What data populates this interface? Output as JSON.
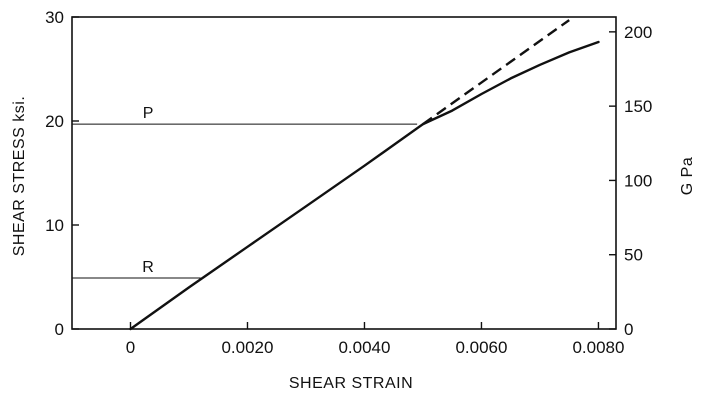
{
  "chart_data": {
    "type": "line",
    "xlabel": "SHEAR STRAIN",
    "ylabel": "SHEAR STRESS ksi.",
    "y2label": "G Pa",
    "xlim": [
      -0.001,
      0.0083
    ],
    "ylim": [
      0,
      30
    ],
    "y2lim": [
      0,
      210
    ],
    "x_ticks": [
      0,
      0.002,
      0.004,
      0.006,
      0.008
    ],
    "x_tick_labels": [
      "0",
      "0.0020",
      "0.0040",
      "0.0060",
      "0.0080"
    ],
    "y_ticks": [
      0,
      10,
      20,
      30
    ],
    "y_tick_labels": [
      "0",
      "10",
      "20",
      "30"
    ],
    "y2_ticks": [
      0,
      50,
      100,
      150,
      200
    ],
    "y2_tick_labels": [
      "0",
      "50",
      "100",
      "150",
      "200"
    ],
    "grid": false,
    "series": [
      {
        "style": "solid",
        "x": [
          0,
          0.001,
          0.002,
          0.003,
          0.004,
          0.005,
          0.0055,
          0.006,
          0.0065,
          0.007,
          0.0075,
          0.008
        ],
        "y": [
          0,
          4.0,
          7.9,
          11.8,
          15.7,
          19.7,
          21.0,
          22.6,
          24.1,
          25.4,
          26.6,
          27.6
        ]
      },
      {
        "style": "dashed",
        "x": [
          0.005,
          0.0075
        ],
        "y": [
          19.7,
          29.7
        ]
      }
    ],
    "annotations": [
      {
        "label": "P",
        "y": 19.7,
        "x_end": 0.0049,
        "label_x": 0.0003
      },
      {
        "label": "R",
        "y": 4.9,
        "x_end": 0.0012,
        "label_x": 0.0003
      }
    ]
  }
}
